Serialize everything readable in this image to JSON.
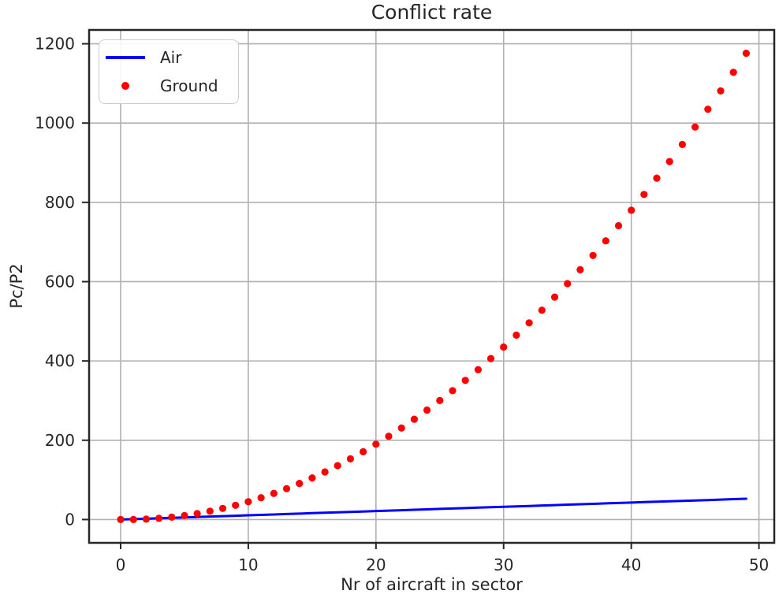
{
  "chart_data": {
    "type": "line+scatter",
    "title": "Conflict rate",
    "xlabel": "Nr of aircraft in sector",
    "ylabel": "Pc/P2",
    "grid": true,
    "grid_color": "#b0b0b0",
    "spine_color": "#262626",
    "legend_position": "upper left",
    "xticks": [
      0,
      10,
      20,
      30,
      40,
      50
    ],
    "yticks": [
      0,
      200,
      400,
      600,
      800,
      1000,
      1200
    ],
    "xlim": [
      -2.47,
      51.2
    ],
    "ylim": [
      -58.8,
      1234.9
    ],
    "x": [
      0,
      1,
      2,
      3,
      4,
      5,
      6,
      7,
      8,
      9,
      10,
      11,
      12,
      13,
      14,
      15,
      16,
      17,
      18,
      19,
      20,
      21,
      22,
      23,
      24,
      25,
      26,
      27,
      28,
      29,
      30,
      31,
      32,
      33,
      34,
      35,
      36,
      37,
      38,
      39,
      40,
      41,
      42,
      43,
      44,
      45,
      46,
      47,
      48,
      49
    ],
    "series": [
      {
        "name": "Air",
        "type": "line",
        "color": "#0000ff",
        "values": [
          0,
          1.1,
          2.1,
          3.2,
          4.3,
          5.4,
          6.4,
          7.5,
          8.6,
          9.6,
          10.7,
          11.8,
          12.8,
          13.9,
          15.0,
          16.1,
          17.1,
          18.2,
          19.3,
          20.3,
          21.4,
          22.5,
          23.5,
          24.6,
          25.7,
          26.8,
          27.8,
          28.9,
          30.0,
          31.0,
          32.1,
          33.2,
          34.2,
          35.3,
          36.4,
          37.5,
          38.5,
          39.6,
          40.7,
          41.7,
          42.8,
          43.9,
          44.9,
          46.0,
          47.1,
          48.2,
          49.2,
          50.3,
          51.4,
          52.4
        ]
      },
      {
        "name": "Ground",
        "type": "scatter",
        "color": "#ff0000",
        "values": [
          0,
          0,
          1,
          3,
          6,
          10,
          15,
          21,
          28,
          36,
          45,
          55,
          66,
          78,
          91,
          105,
          120,
          136,
          153,
          171,
          190,
          210,
          231,
          253,
          276,
          300,
          325,
          351,
          378,
          406,
          435,
          465,
          496,
          528,
          561,
          595,
          630,
          666,
          703,
          741,
          780,
          820,
          861,
          903,
          946,
          990,
          1035,
          1081,
          1128,
          1176
        ]
      }
    ]
  }
}
